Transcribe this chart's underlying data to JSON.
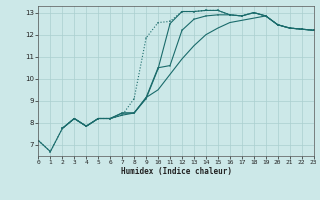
{
  "bg_color": "#cce8e8",
  "grid_color": "#aacfcf",
  "line_color": "#1a6b6b",
  "xlabel": "Humidex (Indice chaleur)",
  "xlim": [
    0,
    23
  ],
  "ylim": [
    6.5,
    13.3
  ],
  "yticks": [
    7,
    8,
    9,
    10,
    11,
    12,
    13
  ],
  "xticks": [
    0,
    1,
    2,
    3,
    4,
    5,
    6,
    7,
    8,
    9,
    10,
    11,
    12,
    13,
    14,
    15,
    16,
    17,
    18,
    19,
    20,
    21,
    22,
    23
  ],
  "curve1_x": [
    0,
    1,
    2,
    3,
    4,
    5,
    6,
    7,
    8,
    9,
    10,
    11,
    12,
    13,
    14,
    15,
    16,
    17,
    18,
    19,
    20,
    21,
    22,
    23
  ],
  "curve1_y": [
    7.2,
    6.7,
    7.75,
    8.2,
    7.85,
    8.2,
    8.2,
    8.35,
    9.1,
    11.85,
    12.55,
    12.6,
    13.05,
    13.05,
    13.1,
    13.1,
    12.9,
    12.85,
    13.0,
    12.85,
    12.45,
    12.3,
    12.25,
    12.2
  ],
  "curve2_x": [
    2,
    3,
    4,
    5,
    6,
    7,
    8,
    9,
    10,
    11,
    12,
    13,
    14,
    15,
    16,
    17,
    18,
    19,
    20,
    21,
    22,
    23
  ],
  "curve2_y": [
    7.75,
    8.2,
    7.85,
    8.2,
    8.2,
    8.45,
    8.45,
    9.15,
    10.5,
    10.6,
    12.2,
    12.7,
    12.85,
    12.9,
    12.9,
    12.85,
    13.0,
    12.85,
    12.45,
    12.3,
    12.25,
    12.2
  ],
  "curve3_x": [
    2,
    3,
    4,
    5,
    6,
    7,
    8,
    9,
    10,
    11,
    12,
    13,
    14,
    15,
    16,
    17,
    18,
    19,
    20,
    21,
    22,
    23
  ],
  "curve3_y": [
    7.75,
    8.2,
    7.85,
    8.2,
    8.2,
    8.45,
    8.45,
    9.15,
    9.5,
    10.2,
    10.9,
    11.5,
    12.0,
    12.3,
    12.55,
    12.65,
    12.75,
    12.85,
    12.45,
    12.3,
    12.25,
    12.2
  ],
  "curve4_x": [
    0,
    1,
    2,
    3,
    4,
    5,
    6,
    7,
    8,
    9,
    10,
    11,
    12,
    13,
    14,
    15,
    16,
    17,
    18,
    19,
    20,
    21,
    22,
    23
  ],
  "curve4_y": [
    7.2,
    6.7,
    7.75,
    8.2,
    7.85,
    8.2,
    8.2,
    8.35,
    8.45,
    9.1,
    10.45,
    12.5,
    13.05,
    13.05,
    13.1,
    13.1,
    12.9,
    12.85,
    13.0,
    12.85,
    12.45,
    12.3,
    12.25,
    12.2
  ]
}
